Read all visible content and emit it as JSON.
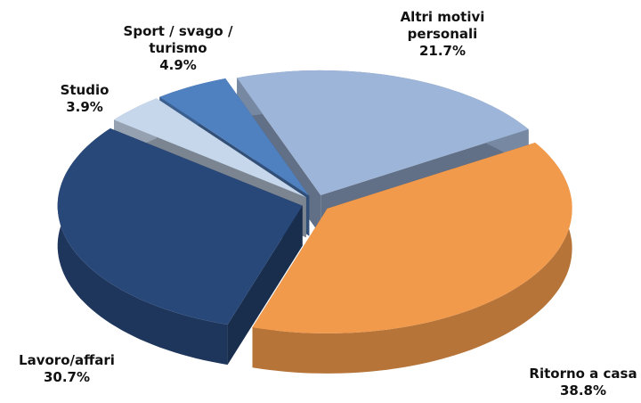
{
  "chart_data": {
    "type": "pie",
    "categories": [
      "Altri motivi personali",
      "Ritorno a casa",
      "Lavoro/affari",
      "Studio",
      "Sport / svago / turismo"
    ],
    "values": [
      21.7,
      38.8,
      30.7,
      3.9,
      4.9
    ],
    "value_labels": [
      "21.7%",
      "38.8%",
      "30.7%",
      "3.9%",
      "4.9%"
    ],
    "colors": [
      "#9db5d8",
      "#f29a4c",
      "#28487a",
      "#c6d7eb",
      "#4f80c0"
    ]
  }
}
